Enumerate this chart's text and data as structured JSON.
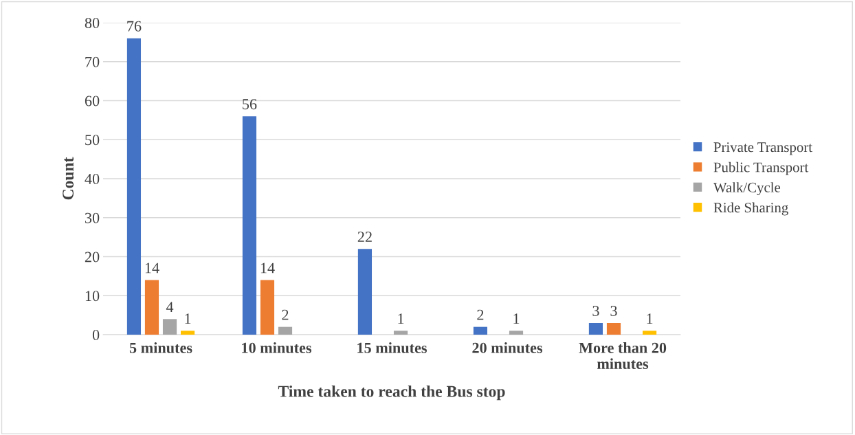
{
  "chart_data": {
    "type": "bar",
    "xlabel": "Time taken to reach the Bus stop",
    "ylabel": "Count",
    "categories": [
      "5 minutes",
      "10 minutes",
      "15 minutes",
      "20 minutes",
      "More than 20 minutes"
    ],
    "series": [
      {
        "name": "Private Transport",
        "color": "#4472c4",
        "values": [
          76,
          56,
          22,
          2,
          3
        ]
      },
      {
        "name": "Public Transport",
        "color": "#ed7d31",
        "values": [
          14,
          14,
          null,
          null,
          3
        ]
      },
      {
        "name": "Walk/Cycle",
        "color": "#a5a5a5",
        "values": [
          4,
          2,
          1,
          1,
          null
        ]
      },
      {
        "name": "Ride Sharing",
        "color": "#ffc000",
        "values": [
          1,
          null,
          null,
          null,
          1
        ]
      }
    ],
    "ylim": [
      0,
      80
    ],
    "yticks": [
      0,
      10,
      20,
      30,
      40,
      50,
      60,
      70,
      80
    ],
    "grid": "y",
    "legend": "right",
    "data_labels": true
  }
}
